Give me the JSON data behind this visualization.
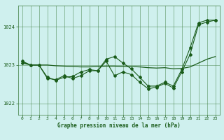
{
  "background_color": "#cff0ee",
  "grid_color": "#3a7a3a",
  "line_color": "#1a5c1a",
  "xlabel": "Graphe pression niveau de la mer (hPa)",
  "xlim": [
    -0.5,
    23.5
  ],
  "ylim": [
    1021.7,
    1024.55
  ],
  "yticks": [
    1022,
    1023,
    1024
  ],
  "xticks": [
    0,
    1,
    2,
    3,
    4,
    5,
    6,
    7,
    8,
    9,
    10,
    11,
    12,
    13,
    14,
    15,
    16,
    17,
    18,
    19,
    20,
    21,
    22,
    23
  ],
  "s1": [
    1023.1,
    1023.0,
    1023.0,
    1022.68,
    1022.6,
    1022.68,
    1022.7,
    1022.82,
    1022.88,
    1022.85,
    1023.15,
    1023.22,
    1023.05,
    1022.9,
    1022.68,
    1022.45,
    1022.45,
    1022.55,
    1022.45,
    1022.88,
    1023.45,
    1024.1,
    1024.17,
    1024.17
  ],
  "s2": [
    1023.05,
    1023.0,
    1023.0,
    1022.65,
    1022.62,
    1022.72,
    1022.65,
    1022.72,
    1022.85,
    1022.85,
    1023.1,
    1022.72,
    1022.82,
    1022.75,
    1022.55,
    1022.38,
    1022.42,
    1022.52,
    1022.4,
    1022.82,
    1023.28,
    1024.05,
    1024.12,
    1024.17
  ],
  "s3": [
    1023.08,
    1023.0,
    1023.0,
    1023.0,
    1022.98,
    1022.97,
    1022.96,
    1022.95,
    1022.95,
    1022.96,
    1022.97,
    1022.97,
    1022.96,
    1022.96,
    1022.95,
    1022.93,
    1022.92,
    1022.93,
    1022.9,
    1022.91,
    1022.95,
    1023.05,
    1023.15,
    1023.22
  ]
}
